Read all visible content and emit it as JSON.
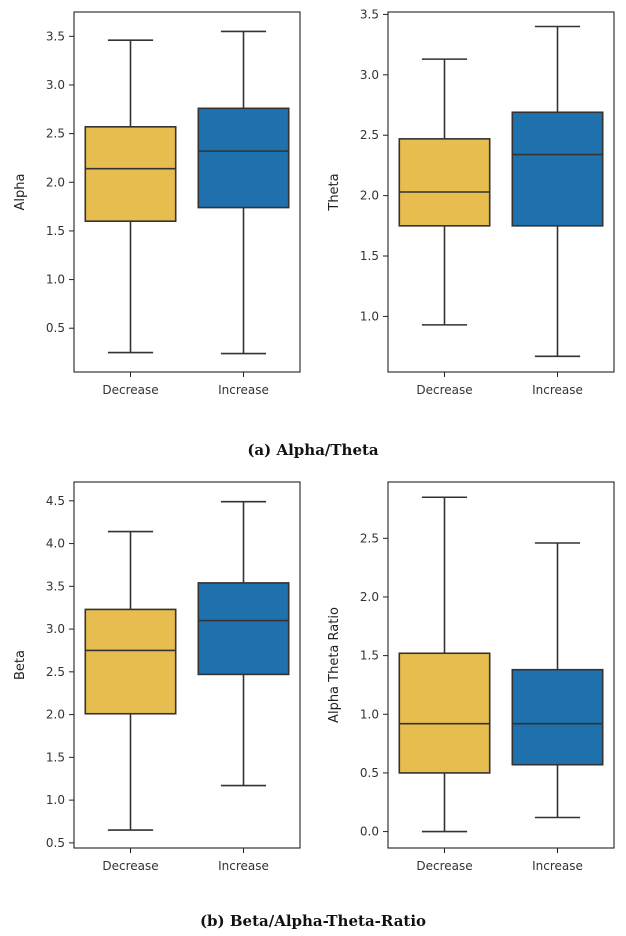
{
  "colors": {
    "decrease": "#e8bd4f",
    "increase": "#1f71ad",
    "edge": "#333333",
    "axis": "#222222"
  },
  "captions": {
    "a": "(a) Alpha/Theta",
    "b": "(b) Beta/Alpha-Theta-Ratio"
  },
  "chart_data": [
    {
      "type": "box",
      "panel": "a",
      "position": "left",
      "ylabel": "Alpha",
      "categories": [
        "Decrease",
        "Increase"
      ],
      "ylim": [
        0.05,
        3.75
      ],
      "yticks": [
        0.5,
        1.0,
        1.5,
        2.0,
        2.5,
        3.0,
        3.5
      ],
      "boxes": [
        {
          "whisker_low": 0.25,
          "q1": 1.6,
          "median": 2.14,
          "q3": 2.57,
          "whisker_high": 3.46
        },
        {
          "whisker_low": 0.24,
          "q1": 1.74,
          "median": 2.32,
          "q3": 2.76,
          "whisker_high": 3.55
        }
      ]
    },
    {
      "type": "box",
      "panel": "a",
      "position": "right",
      "ylabel": "Theta",
      "categories": [
        "Decrease",
        "Increase"
      ],
      "ylim": [
        0.54,
        3.52
      ],
      "yticks": [
        1.0,
        1.5,
        2.0,
        2.5,
        3.0,
        3.5
      ],
      "boxes": [
        {
          "whisker_low": 0.93,
          "q1": 1.75,
          "median": 2.03,
          "q3": 2.47,
          "whisker_high": 3.13
        },
        {
          "whisker_low": 0.67,
          "q1": 1.75,
          "median": 2.34,
          "q3": 2.69,
          "whisker_high": 3.4
        }
      ]
    },
    {
      "type": "box",
      "panel": "b",
      "position": "left",
      "ylabel": "Beta",
      "categories": [
        "Decrease",
        "Increase"
      ],
      "ylim": [
        0.44,
        4.72
      ],
      "yticks": [
        0.5,
        1.0,
        1.5,
        2.0,
        2.5,
        3.0,
        3.5,
        4.0,
        4.5
      ],
      "boxes": [
        {
          "whisker_low": 0.65,
          "q1": 2.01,
          "median": 2.75,
          "q3": 3.23,
          "whisker_high": 4.14
        },
        {
          "whisker_low": 1.17,
          "q1": 2.47,
          "median": 3.1,
          "q3": 3.54,
          "whisker_high": 4.49
        }
      ]
    },
    {
      "type": "box",
      "panel": "b",
      "position": "right",
      "ylabel": "Alpha Theta Ratio",
      "categories": [
        "Decrease",
        "Increase"
      ],
      "ylim": [
        -0.14,
        2.98
      ],
      "yticks": [
        0.0,
        0.5,
        1.0,
        1.5,
        2.0,
        2.5
      ],
      "boxes": [
        {
          "whisker_low": 0.0,
          "q1": 0.5,
          "median": 0.92,
          "q3": 1.52,
          "whisker_high": 2.85
        },
        {
          "whisker_low": 0.12,
          "q1": 0.57,
          "median": 0.92,
          "q3": 1.38,
          "whisker_high": 2.46
        }
      ]
    }
  ]
}
